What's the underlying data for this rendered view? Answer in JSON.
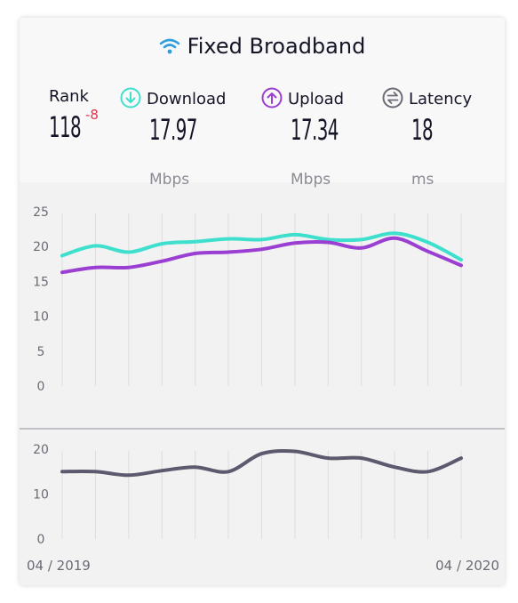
{
  "title": "Fixed Broadband",
  "metrics": {
    "rank": {
      "label": "Rank",
      "value": "118",
      "change": "-8"
    },
    "download": {
      "label": "Download",
      "value": "17.97",
      "unit": "Mbps"
    },
    "upload": {
      "label": "Upload",
      "value": "17.34",
      "unit": "Mbps"
    },
    "latency": {
      "label": "Latency",
      "value": "18",
      "unit": "ms"
    }
  },
  "colors": {
    "download": "#3ee0cd",
    "upload": "#9b3fd2",
    "latency": "#5b5a6e",
    "rank_change": "#e0354e"
  },
  "icons": {
    "title": "wifi-icon",
    "download": "download-arrow-icon",
    "upload": "upload-arrow-icon",
    "latency": "latency-arrows-icon"
  },
  "chart_data": [
    {
      "type": "line",
      "title": "",
      "ylim": [
        0,
        25
      ],
      "yticks": [
        0,
        5,
        10,
        15,
        20,
        25
      ],
      "x_start_label": "04 / 2019",
      "x_end_label": "04 / 2020",
      "series": [
        {
          "name": "Download",
          "values": [
            18.7,
            20.1,
            19.2,
            20.4,
            20.7,
            21.1,
            21.0,
            21.7,
            21.0,
            21.0,
            21.9,
            20.6,
            18.1
          ]
        },
        {
          "name": "Upload",
          "values": [
            16.3,
            17.0,
            17.0,
            17.9,
            19.0,
            19.2,
            19.6,
            20.5,
            20.6,
            19.8,
            21.2,
            19.3,
            17.3
          ]
        }
      ]
    },
    {
      "type": "line",
      "title": "",
      "ylim": [
        0,
        20
      ],
      "yticks": [
        0,
        10,
        20
      ],
      "series": [
        {
          "name": "Latency",
          "values": [
            15.0,
            15.0,
            14.2,
            15.2,
            16.0,
            15.0,
            19.0,
            19.5,
            18.0,
            18.0,
            16.0,
            15.0,
            18.0
          ]
        }
      ]
    }
  ]
}
